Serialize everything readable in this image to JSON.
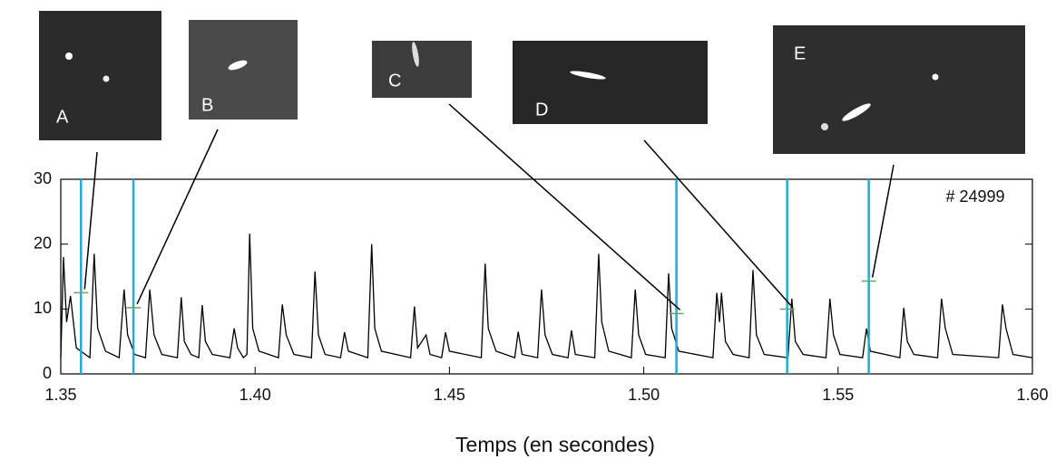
{
  "chart_data": {
    "type": "line",
    "annotation": "# 24999",
    "x_label": "Temps (en secondes)",
    "color": "#000000",
    "marker_color": "#29a8d8",
    "x": [
      1.35,
      1.3507,
      1.3515,
      1.3525,
      1.354,
      1.3575,
      1.3586,
      1.3595,
      1.3615,
      1.365,
      1.3663,
      1.3672,
      1.369,
      1.3718,
      1.3729,
      1.374,
      1.376,
      1.38,
      1.381,
      1.3818,
      1.3835,
      1.3855,
      1.3864,
      1.3872,
      1.389,
      1.3935,
      1.3946,
      1.3955,
      1.397,
      1.3979,
      1.3986,
      1.3994,
      1.401,
      1.406,
      1.407,
      1.408,
      1.41,
      1.4145,
      1.4154,
      1.4163,
      1.418,
      1.422,
      1.423,
      1.424,
      1.429,
      1.43,
      1.4308,
      1.4325,
      1.44,
      1.441,
      1.4418,
      1.444,
      1.445,
      1.448,
      1.449,
      1.45,
      1.4582,
      1.4592,
      1.46,
      1.462,
      1.4668,
      1.4677,
      1.4687,
      1.4727,
      1.4737,
      1.4746,
      1.4765,
      1.4805,
      1.4814,
      1.4824,
      1.4874,
      1.4884,
      1.4892,
      1.491,
      1.4968,
      1.4978,
      1.4987,
      1.5005,
      1.5055,
      1.5064,
      1.5072,
      1.509,
      1.5178,
      1.5188,
      1.5195,
      1.52,
      1.521,
      1.523,
      1.5271,
      1.5281,
      1.529,
      1.531,
      1.5371,
      1.5381,
      1.539,
      1.541,
      1.5469,
      1.5479,
      1.5488,
      1.5505,
      1.5563,
      1.5573,
      1.5583,
      1.5659,
      1.5669,
      1.5678,
      1.5695,
      1.5756,
      1.5766,
      1.5776,
      1.5795,
      1.5913,
      1.5923,
      1.5932,
      1.595,
      1.6
    ],
    "values": [
      2.5,
      18,
      8,
      12,
      4,
      2.5,
      18.5,
      7,
      3.5,
      2.5,
      13,
      6,
      3,
      2.5,
      13,
      6,
      3,
      2.5,
      11.8,
      5,
      3,
      2.5,
      10.6,
      5,
      3,
      2.5,
      7,
      4,
      2.5,
      3,
      21.6,
      7,
      3.5,
      2.5,
      10.7,
      6,
      3,
      2.5,
      15.8,
      6,
      3,
      2.5,
      6.4,
      3.5,
      2.5,
      20,
      7,
      3.5,
      2.5,
      10.4,
      4,
      6,
      3,
      2.5,
      6.4,
      3.5,
      2.5,
      17,
      7,
      3.5,
      2.5,
      6.5,
      3,
      2.5,
      13,
      6,
      3,
      2.5,
      6.7,
      3,
      2.5,
      18.5,
      8,
      3.5,
      2.5,
      13,
      6,
      3,
      2.5,
      15.5,
      7,
      3.5,
      2.5,
      12.5,
      8,
      12.5,
      5,
      3,
      2.5,
      16,
      6,
      3,
      2.5,
      11.6,
      5,
      3,
      2.5,
      11.6,
      6,
      3,
      2.5,
      7,
      3.5,
      2.5,
      10.2,
      5,
      3,
      2.5,
      11.6,
      7,
      3,
      2.5,
      10.7,
      7,
      3,
      2.5
    ],
    "markers": [
      {
        "label": "A",
        "x": 1.3552,
        "y": 12.5
      },
      {
        "label": "B",
        "x": 1.3687,
        "y": 10.2
      },
      {
        "label": "C",
        "x": 1.5084,
        "y": 9.3
      },
      {
        "label": "D",
        "x": 1.5369,
        "y": 10
      },
      {
        "label": "E",
        "x": 1.5579,
        "y": 14.3
      }
    ],
    "xlim": [
      1.35,
      1.6
    ],
    "xticks": [
      1.35,
      {
        "value": 1.4,
        "label": "1.40"
      },
      1.45,
      {
        "value": 1.5,
        "label": "1.50"
      },
      1.55,
      {
        "value": 1.6,
        "label": "1.60"
      }
    ],
    "ylim": [
      0,
      30
    ],
    "yticks": [
      0,
      10,
      20,
      30
    ]
  }
}
